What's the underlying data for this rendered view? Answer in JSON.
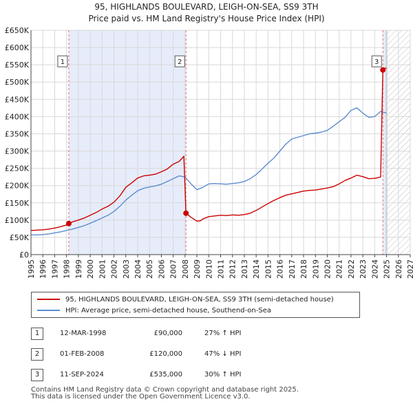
{
  "chart_data": {
    "type": "line",
    "title": "95, HIGHLANDS BOULEVARD, LEIGH-ON-SEA, SS9 3TH",
    "subtitle": "Price paid vs. HM Land Registry's House Price Index (HPI)",
    "xlabel": "",
    "ylabel": "",
    "xlim": [
      1995,
      2027
    ],
    "ylim": [
      0,
      650000
    ],
    "x_ticks": [
      1995,
      1996,
      1997,
      1998,
      1999,
      2000,
      2001,
      2002,
      2003,
      2004,
      2005,
      2006,
      2007,
      2008,
      2009,
      2010,
      2011,
      2012,
      2013,
      2014,
      2015,
      2016,
      2017,
      2018,
      2019,
      2020,
      2021,
      2022,
      2023,
      2024,
      2025,
      2026,
      2027
    ],
    "y_ticks": [
      {
        "value": 0,
        "label": "£0"
      },
      {
        "value": 50000,
        "label": "£50K"
      },
      {
        "value": 100000,
        "label": "£100K"
      },
      {
        "value": 150000,
        "label": "£150K"
      },
      {
        "value": 200000,
        "label": "£200K"
      },
      {
        "value": 250000,
        "label": "£250K"
      },
      {
        "value": 300000,
        "label": "£300K"
      },
      {
        "value": 350000,
        "label": "£350K"
      },
      {
        "value": 400000,
        "label": "£400K"
      },
      {
        "value": 450000,
        "label": "£450K"
      },
      {
        "value": 500000,
        "label": "£500K"
      },
      {
        "value": 550000,
        "label": "£550K"
      },
      {
        "value": 600000,
        "label": "£600K"
      },
      {
        "value": 650000,
        "label": "£650K"
      }
    ],
    "grid": true,
    "shaded_ranges": [
      {
        "from": 1998.19,
        "to": 2008.08
      },
      {
        "from": 2024.69,
        "to": 2025.0
      }
    ],
    "hatched_range": {
      "from": 2025.0,
      "to": 2027.0
    },
    "series": [
      {
        "name": "95, HIGHLANDS BOULEVARD, LEIGH-ON-SEA, SS9 3TH (semi-detached house)",
        "color": "#cc0000",
        "x": [
          1995.0,
          1995.5,
          1996.0,
          1996.5,
          1997.0,
          1997.5,
          1998.0,
          1998.19,
          1998.5,
          1999.0,
          1999.5,
          2000.0,
          2000.5,
          2001.0,
          2001.5,
          2002.0,
          2002.5,
          2003.0,
          2003.5,
          2004.0,
          2004.5,
          2005.0,
          2005.5,
          2006.0,
          2006.5,
          2007.0,
          2007.5,
          2007.9,
          2008.08,
          2008.5,
          2009.0,
          2009.3,
          2009.5,
          2010.0,
          2010.5,
          2011.0,
          2011.5,
          2012.0,
          2012.5,
          2013.0,
          2013.5,
          2014.0,
          2014.5,
          2015.0,
          2015.5,
          2016.0,
          2016.5,
          2017.0,
          2017.5,
          2018.0,
          2018.5,
          2019.0,
          2019.5,
          2020.0,
          2020.5,
          2021.0,
          2021.5,
          2022.0,
          2022.5,
          2023.0,
          2023.5,
          2024.0,
          2024.5,
          2024.69,
          2024.75,
          2025.0
        ],
        "values": [
          70000,
          71000,
          72000,
          74000,
          77000,
          81000,
          86000,
          90000,
          95000,
          100000,
          106000,
          114000,
          122000,
          132000,
          140000,
          152000,
          170000,
          195000,
          208000,
          222000,
          228000,
          230000,
          233000,
          240000,
          248000,
          262000,
          270000,
          285000,
          120000,
          108000,
          97000,
          98000,
          103000,
          110000,
          112000,
          114000,
          113000,
          115000,
          114000,
          116000,
          120000,
          128000,
          138000,
          148000,
          157000,
          165000,
          172000,
          176000,
          180000,
          184000,
          186000,
          187000,
          190000,
          193000,
          197000,
          205000,
          215000,
          222000,
          230000,
          226000,
          220000,
          221000,
          225000,
          535000,
          540000,
          540000
        ]
      },
      {
        "name": "HPI: Average price, semi-detached house, Southend-on-Sea",
        "color": "#5b8bd0",
        "x": [
          1995.0,
          1995.5,
          1996.0,
          1996.5,
          1997.0,
          1997.5,
          1998.0,
          1998.5,
          1999.0,
          1999.5,
          2000.0,
          2000.5,
          2001.0,
          2001.5,
          2002.0,
          2002.5,
          2003.0,
          2003.5,
          2004.0,
          2004.5,
          2005.0,
          2005.5,
          2006.0,
          2006.5,
          2007.0,
          2007.5,
          2008.0,
          2008.5,
          2009.0,
          2009.5,
          2010.0,
          2010.5,
          2011.0,
          2011.5,
          2012.0,
          2012.5,
          2013.0,
          2013.5,
          2014.0,
          2014.5,
          2015.0,
          2015.5,
          2016.0,
          2016.5,
          2017.0,
          2017.5,
          2018.0,
          2018.5,
          2019.0,
          2019.5,
          2020.0,
          2020.5,
          2021.0,
          2021.5,
          2022.0,
          2022.5,
          2023.0,
          2023.5,
          2024.0,
          2024.5,
          2025.0
        ],
        "values": [
          57000,
          57000,
          58000,
          60000,
          63000,
          66000,
          70000,
          74000,
          79000,
          84000,
          91000,
          98000,
          106000,
          114000,
          125000,
          140000,
          158000,
          172000,
          185000,
          192000,
          196000,
          199000,
          204000,
          212000,
          220000,
          228000,
          225000,
          205000,
          188000,
          195000,
          205000,
          206000,
          205000,
          204000,
          206000,
          208000,
          212000,
          220000,
          232000,
          248000,
          265000,
          280000,
          300000,
          320000,
          335000,
          340000,
          345000,
          350000,
          352000,
          355000,
          360000,
          372000,
          385000,
          398000,
          418000,
          425000,
          410000,
          398000,
          400000,
          415000,
          410000
        ]
      }
    ],
    "markers": [
      {
        "label": "1",
        "x": 1998.19,
        "value": 90000
      },
      {
        "label": "2",
        "x": 2008.08,
        "value": 120000
      },
      {
        "label": "3",
        "x": 2024.69,
        "value": 535000
      }
    ],
    "marker_label_value": 560000
  },
  "legend": {
    "items": [
      {
        "label": "95, HIGHLANDS BOULEVARD, LEIGH-ON-SEA, SS9 3TH (semi-detached house)",
        "color": "#cc0000"
      },
      {
        "label": "HPI: Average price, semi-detached house, Southend-on-Sea",
        "color": "#5b8bd0"
      }
    ]
  },
  "transactions": [
    {
      "num": "1",
      "date": "12-MAR-1998",
      "price": "£90,000",
      "hpi": "27% ↑ HPI"
    },
    {
      "num": "2",
      "date": "01-FEB-2008",
      "price": "£120,000",
      "hpi": "47% ↓ HPI"
    },
    {
      "num": "3",
      "date": "11-SEP-2024",
      "price": "£535,000",
      "hpi": "30% ↑ HPI"
    }
  ],
  "footer": {
    "line1": "Contains HM Land Registry data © Crown copyright and database right 2025.",
    "line2": "This data is licensed under the Open Government Licence v3.0."
  }
}
